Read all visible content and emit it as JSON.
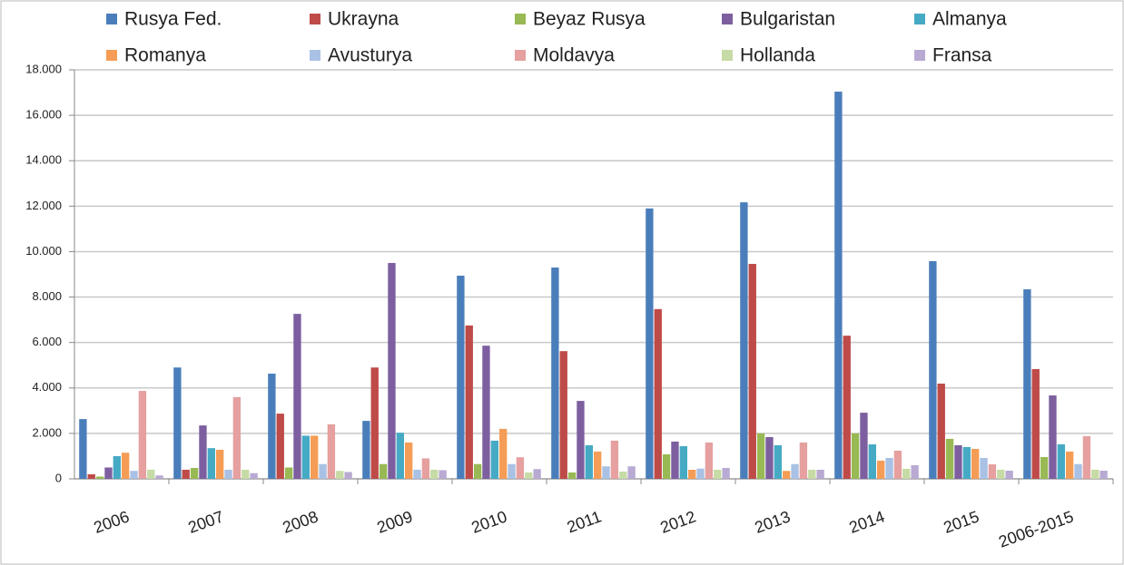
{
  "chart_data": {
    "type": "bar",
    "legend": "top",
    "grid": true,
    "categories": [
      "2006",
      "2007",
      "2008",
      "2009",
      "2010",
      "2011",
      "2012",
      "2013",
      "2014",
      "2015",
      "2006-2015"
    ],
    "series": [
      {
        "name": "Rusya Fed.",
        "color": "#4a7ebb",
        "values": [
          2630,
          4900,
          4630,
          2550,
          8940,
          9300,
          11900,
          12170,
          17040,
          9580,
          8340
        ]
      },
      {
        "name": "Ukrayna",
        "color": "#be4b48",
        "values": [
          200,
          400,
          2870,
          4900,
          6750,
          5620,
          7470,
          9460,
          6300,
          4190,
          4830
        ]
      },
      {
        "name": "Beyaz Rusya",
        "color": "#98b954",
        "values": [
          100,
          480,
          500,
          650,
          650,
          280,
          1080,
          2000,
          2000,
          1760,
          960
        ]
      },
      {
        "name": "Bulgaristan",
        "color": "#7d5fa0",
        "values": [
          500,
          2350,
          7260,
          9500,
          5860,
          3430,
          1640,
          1840,
          2910,
          1480,
          3670
        ]
      },
      {
        "name": "Almanya",
        "color": "#46aac5",
        "values": [
          1000,
          1350,
          1900,
          2030,
          1680,
          1480,
          1440,
          1480,
          1520,
          1400,
          1520
        ]
      },
      {
        "name": "Romanya",
        "color": "#f59d56",
        "values": [
          1150,
          1280,
          1900,
          1600,
          2200,
          1200,
          400,
          350,
          800,
          1320,
          1200
        ]
      },
      {
        "name": "Avusturya",
        "color": "#a9c1e4",
        "values": [
          350,
          400,
          650,
          400,
          650,
          550,
          450,
          650,
          920,
          920,
          650
        ]
      },
      {
        "name": "Moldavya",
        "color": "#e5a09f",
        "values": [
          3870,
          3600,
          2400,
          900,
          950,
          1680,
          1600,
          1600,
          1240,
          640,
          1880
        ]
      },
      {
        "name": "Hollanda",
        "color": "#c6dba5",
        "values": [
          400,
          400,
          350,
          400,
          280,
          320,
          400,
          400,
          440,
          400,
          400
        ]
      },
      {
        "name": "Fransa",
        "color": "#b9aad3",
        "values": [
          150,
          250,
          300,
          380,
          430,
          550,
          480,
          400,
          600,
          360,
          360
        ]
      }
    ],
    "ylim": [
      0,
      18000
    ],
    "yticks": [
      0,
      {
        "value": 2000,
        "label": "2.000"
      },
      {
        "value": 4000,
        "label": "4.000"
      },
      {
        "value": 6000,
        "label": "6.000"
      },
      {
        "value": 8000,
        "label": "8.000"
      },
      {
        "value": 10000,
        "label": "10.000"
      },
      {
        "value": 12000,
        "label": "12.000"
      },
      {
        "value": 14000,
        "label": "14.000"
      },
      {
        "value": 16000,
        "label": "16.000"
      },
      {
        "value": 18000,
        "label": "18.000"
      }
    ]
  }
}
